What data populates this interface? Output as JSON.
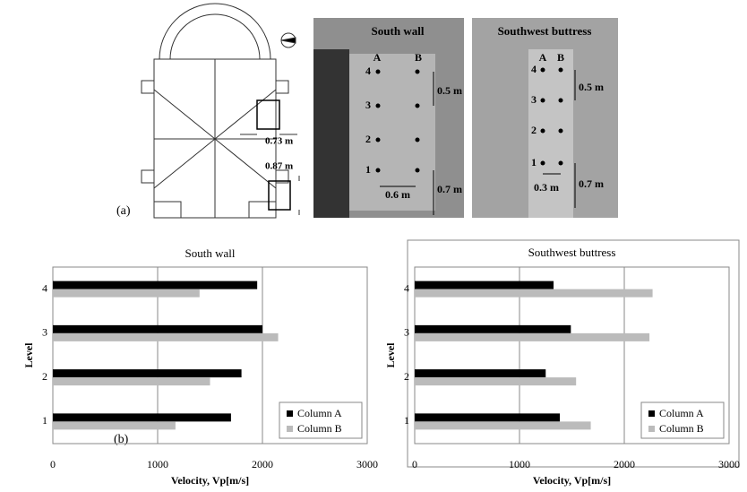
{
  "figure": {
    "panel_a": "(a)",
    "panel_b": "(b)",
    "plan": {
      "dim1": "0.73 m",
      "dim2": "0.87 m"
    },
    "photo1": {
      "title": "South wall",
      "cols": [
        "A",
        "B"
      ],
      "levels": [
        "4",
        "3",
        "2",
        "1"
      ],
      "dims": [
        "0.5 m",
        "0.6 m",
        "0.7 m"
      ]
    },
    "photo2": {
      "title": "Southwest buttress",
      "cols": [
        "A",
        "B"
      ],
      "levels": [
        "4",
        "3",
        "2",
        "1"
      ],
      "dims": [
        "0.5 m",
        "0.3 m",
        "0.7 m"
      ]
    }
  },
  "chart_data": [
    {
      "type": "bar",
      "horizontal": true,
      "title": "South wall",
      "x_label": "Velocity, Vp[m/s]",
      "y_label": "Level",
      "categories": [
        "1",
        "2",
        "3",
        "4"
      ],
      "series": [
        {
          "name": "Column A",
          "color": "#000000",
          "values": [
            1700,
            1800,
            2000,
            1950
          ]
        },
        {
          "name": "Column B",
          "color": "#bbbbbb",
          "values": [
            1170,
            1500,
            2150,
            1400
          ]
        }
      ],
      "xlim": [
        0,
        3000
      ],
      "xticks": [
        0,
        1000,
        2000,
        3000
      ],
      "grid": true,
      "legend": "lower right",
      "frame": false
    },
    {
      "type": "bar",
      "horizontal": true,
      "title": "Southwest buttress",
      "x_label": "Velocity, Vp[m/s]",
      "y_label": "Level",
      "categories": [
        "1",
        "2",
        "3",
        "4"
      ],
      "series": [
        {
          "name": "Column A",
          "color": "#000000",
          "values": [
            1385,
            1250,
            1490,
            1325
          ]
        },
        {
          "name": "Column B",
          "color": "#bbbbbb",
          "values": [
            1680,
            1540,
            2240,
            2270
          ]
        }
      ],
      "xlim": [
        0,
        3000
      ],
      "xticks": [
        0,
        1000,
        2000,
        3000
      ],
      "grid": true,
      "legend": "lower right",
      "frame": true
    }
  ]
}
